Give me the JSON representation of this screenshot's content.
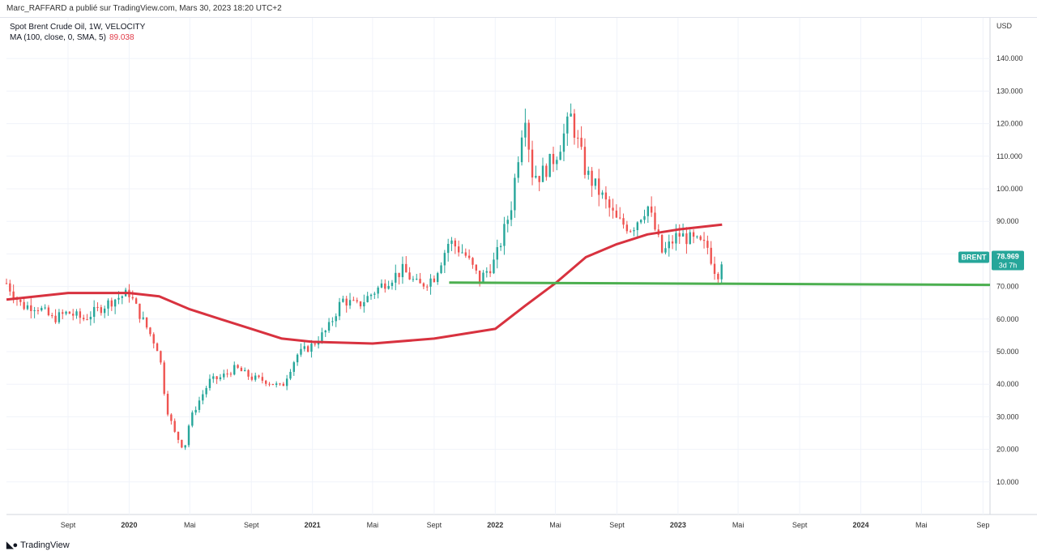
{
  "header": {
    "publisher": "Marc_RAFFARD a publié sur TradingView.com, Mars 30, 2023 18:20 UTC+2"
  },
  "legend": {
    "symbol": "Spot Brent Crude Oil, 1W, VELOCITY",
    "ma_label": "MA (100, close, 0, SMA, 5)",
    "ma_value": "89.038"
  },
  "footer": {
    "logo_text": "TradingView"
  },
  "colors": {
    "up": "#26a69a",
    "down": "#ef5350",
    "ma": "#d8323f",
    "support": "#4caf50",
    "tag": "#26a69a"
  },
  "chart_data": {
    "type": "line",
    "title": "",
    "y_axis": {
      "unit": "USD",
      "ticks": [
        {
          "value": 140,
          "label": "140.000"
        },
        {
          "value": 130,
          "label": "130.000"
        },
        {
          "value": 120,
          "label": "120.000"
        },
        {
          "value": 110,
          "label": "110.000"
        },
        {
          "value": 100,
          "label": "100.000"
        },
        {
          "value": 90,
          "label": "90.000"
        },
        {
          "value": 70,
          "label": "70.000"
        },
        {
          "value": 60,
          "label": "60.000"
        },
        {
          "value": 50,
          "label": "50.000"
        },
        {
          "value": 40,
          "label": "40.000"
        },
        {
          "value": 30,
          "label": "30.000"
        },
        {
          "value": 20,
          "label": "20.000"
        },
        {
          "value": 10,
          "label": "10.000"
        }
      ],
      "range": [
        0,
        150
      ]
    },
    "x_axis": {
      "range": [
        "2019-05-01",
        "2024-09-15"
      ],
      "ticks": [
        {
          "date": "2019-09-01",
          "label": "Sept",
          "major": false
        },
        {
          "date": "2020-01-01",
          "label": "2020",
          "major": true
        },
        {
          "date": "2020-05-01",
          "label": "Mai",
          "major": false
        },
        {
          "date": "2020-09-01",
          "label": "Sept",
          "major": false
        },
        {
          "date": "2021-01-01",
          "label": "2021",
          "major": true
        },
        {
          "date": "2021-05-01",
          "label": "Mai",
          "major": false
        },
        {
          "date": "2021-09-01",
          "label": "Sept",
          "major": false
        },
        {
          "date": "2022-01-01",
          "label": "2022",
          "major": true
        },
        {
          "date": "2022-05-01",
          "label": "Mai",
          "major": false
        },
        {
          "date": "2022-09-01",
          "label": "Sept",
          "major": false
        },
        {
          "date": "2023-01-01",
          "label": "2023",
          "major": true
        },
        {
          "date": "2023-05-01",
          "label": "Mai",
          "major": false
        },
        {
          "date": "2023-09-01",
          "label": "Sept",
          "major": false
        },
        {
          "date": "2024-01-01",
          "label": "2024",
          "major": true
        },
        {
          "date": "2024-05-01",
          "label": "Mai",
          "major": false
        },
        {
          "date": "2024-09-01",
          "label": "Sep",
          "major": false
        }
      ]
    },
    "series": [
      {
        "kind": "price",
        "points": [
          [
            "2019-05-01",
            71
          ],
          [
            "2019-06-01",
            64
          ],
          [
            "2019-07-01",
            64
          ],
          [
            "2019-08-01",
            60
          ],
          [
            "2019-09-01",
            62
          ],
          [
            "2019-10-01",
            60
          ],
          [
            "2019-11-01",
            63
          ],
          [
            "2019-12-01",
            66
          ],
          [
            "2020-01-01",
            68
          ],
          [
            "2020-01-20",
            62
          ],
          [
            "2020-02-10",
            56
          ],
          [
            "2020-03-01",
            50
          ],
          [
            "2020-03-15",
            33
          ],
          [
            "2020-04-01",
            25
          ],
          [
            "2020-04-20",
            20
          ],
          [
            "2020-05-01",
            29
          ],
          [
            "2020-05-20",
            35
          ],
          [
            "2020-06-10",
            41
          ],
          [
            "2020-07-01",
            42
          ],
          [
            "2020-08-01",
            45
          ],
          [
            "2020-09-01",
            42
          ],
          [
            "2020-10-01",
            41
          ],
          [
            "2020-11-01",
            39
          ],
          [
            "2020-11-15",
            44
          ],
          [
            "2020-12-01",
            49
          ],
          [
            "2021-01-01",
            52
          ],
          [
            "2021-02-01",
            57
          ],
          [
            "2021-03-01",
            66
          ],
          [
            "2021-04-01",
            64
          ],
          [
            "2021-05-01",
            68
          ],
          [
            "2021-06-01",
            72
          ],
          [
            "2021-07-01",
            75
          ],
          [
            "2021-08-01",
            70
          ],
          [
            "2021-09-01",
            73
          ],
          [
            "2021-10-01",
            84
          ],
          [
            "2021-11-01",
            80
          ],
          [
            "2021-12-01",
            72
          ],
          [
            "2022-01-01",
            78
          ],
          [
            "2022-02-01",
            94
          ],
          [
            "2022-03-01",
            125
          ],
          [
            "2022-03-15",
            105
          ],
          [
            "2022-04-01",
            104
          ],
          [
            "2022-05-01",
            110
          ],
          [
            "2022-06-01",
            122
          ],
          [
            "2022-07-01",
            105
          ],
          [
            "2022-08-01",
            98
          ],
          [
            "2022-09-01",
            90
          ],
          [
            "2022-10-01",
            88
          ],
          [
            "2022-11-01",
            95
          ],
          [
            "2022-12-01",
            80
          ],
          [
            "2023-01-01",
            86
          ],
          [
            "2023-02-01",
            84
          ],
          [
            "2023-03-01",
            82
          ],
          [
            "2023-03-20",
            73
          ],
          [
            "2023-03-30",
            79
          ]
        ]
      },
      {
        "kind": "ma",
        "name": "MA (100, close, 0, SMA, 5)",
        "points": [
          [
            "2019-05-01",
            66
          ],
          [
            "2019-09-01",
            68
          ],
          [
            "2020-01-01",
            68
          ],
          [
            "2020-03-01",
            67
          ],
          [
            "2020-05-01",
            63
          ],
          [
            "2020-07-01",
            60
          ],
          [
            "2020-09-01",
            57
          ],
          [
            "2020-11-01",
            54
          ],
          [
            "2021-01-01",
            53
          ],
          [
            "2021-05-01",
            52.5
          ],
          [
            "2021-09-01",
            54
          ],
          [
            "2022-01-01",
            57
          ],
          [
            "2022-03-01",
            64
          ],
          [
            "2022-05-01",
            71
          ],
          [
            "2022-07-01",
            79
          ],
          [
            "2022-09-01",
            83
          ],
          [
            "2022-11-01",
            86
          ],
          [
            "2023-01-01",
            87.5
          ],
          [
            "2023-03-30",
            89
          ]
        ]
      },
      {
        "kind": "support",
        "points": [
          [
            "2021-10-01",
            71.2
          ],
          [
            "2024-09-15",
            70.5
          ]
        ]
      }
    ],
    "price_tag": {
      "label": "BRENT",
      "value": "78.969",
      "countdown": "3d 7h",
      "y": 78.969
    }
  }
}
